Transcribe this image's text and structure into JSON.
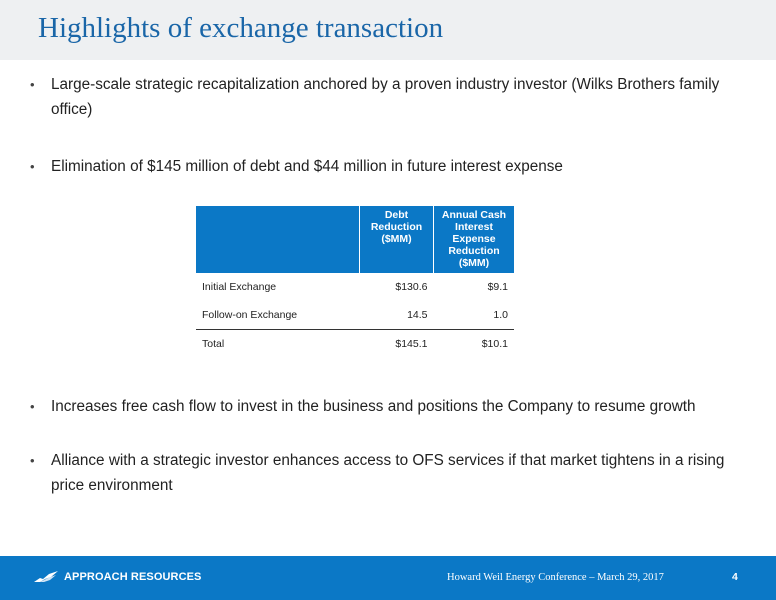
{
  "slide": {
    "title": "Highlights of exchange transaction",
    "bullets": [
      "Large-scale strategic recapitalization anchored by a proven industry investor (Wilks Brothers family office)",
      "Elimination of $145 million of debt and $44 million in future interest expense",
      "Increases free cash flow to invest in the business and positions the Company to resume growth",
      "Alliance with a strategic investor enhances access to OFS services if that market tightens in a rising price environment"
    ],
    "bullet_glyph": "•"
  },
  "table": {
    "headers": [
      "",
      "Debt Reduction ($MM)",
      "Annual Cash Interest Expense Reduction ($MM)"
    ],
    "rows": [
      [
        "Initial Exchange",
        "$130.6",
        "$9.1"
      ],
      [
        "Follow-on Exchange",
        "14.5",
        "1.0"
      ]
    ],
    "total": [
      "Total",
      "$145.1",
      "$10.1"
    ]
  },
  "footer": {
    "company": "APPROACH RESOURCES",
    "conference": "Howard Weil Energy Conference – March 29, 2017",
    "page_number": "4",
    "logo_icon": "mountain-logo-icon"
  },
  "colors": {
    "accent_blue": "#0b78c6",
    "title_blue": "#1a66a8",
    "title_bar_bg": "#eef0f2"
  }
}
